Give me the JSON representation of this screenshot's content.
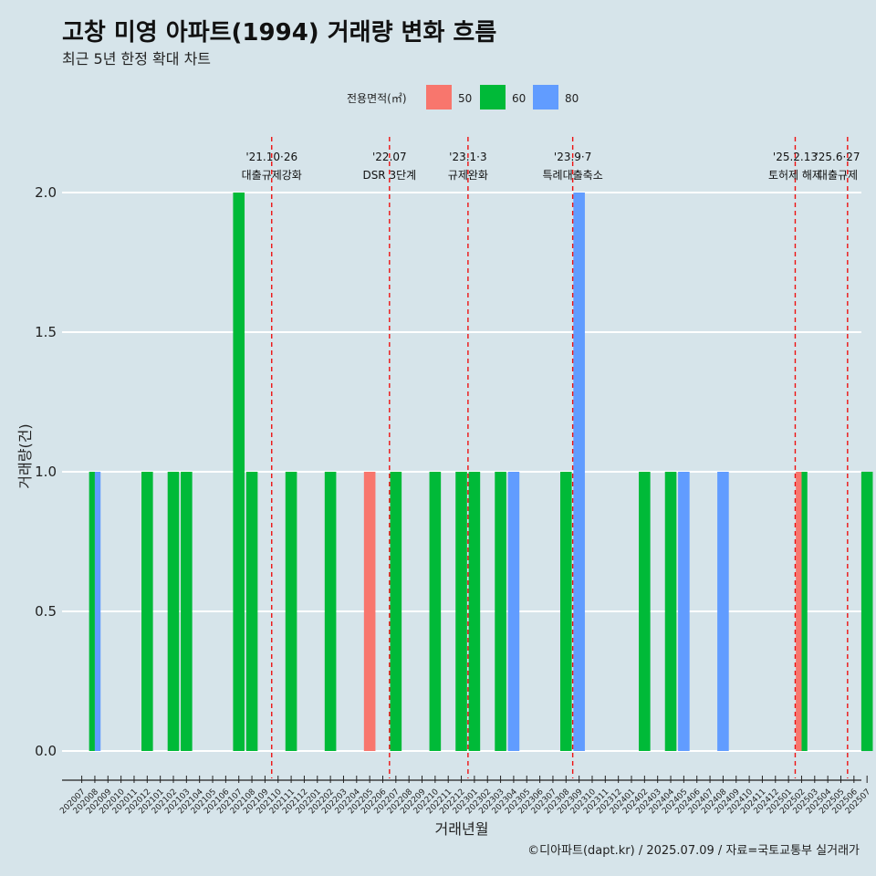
{
  "chart_data": {
    "type": "bar",
    "title": "고창 미영 아파트(1994) 거래량 변화 흐름",
    "subtitle": "최근 5년 한정 확대 차트",
    "xlabel": "거래년월",
    "ylabel": "거래량(건)",
    "ylim": [
      0,
      2
    ],
    "yticks": [
      "0.0",
      "0.5",
      "1.0",
      "1.5",
      "2.0"
    ],
    "caption": "©디아파트(dapt.kr) / 2025.07.09 / 자료=국토교통부 실거래가",
    "legend": {
      "title": "전용면적(㎡)",
      "placement": "top",
      "entries": [
        {
          "name": "50",
          "color": "#f8766d"
        },
        {
          "name": "60",
          "color": "#00ba38"
        },
        {
          "name": "80",
          "color": "#619cff"
        }
      ]
    },
    "grid": true,
    "categories": [
      "202007",
      "202008",
      "202009",
      "202010",
      "202011",
      "202012",
      "202101",
      "202102",
      "202103",
      "202104",
      "202105",
      "202106",
      "202107",
      "202108",
      "202109",
      "202110",
      "202111",
      "202112",
      "202201",
      "202202",
      "202203",
      "202204",
      "202205",
      "202206",
      "202207",
      "202208",
      "202209",
      "202210",
      "202211",
      "202212",
      "202301",
      "202302",
      "202303",
      "202304",
      "202305",
      "202306",
      "202307",
      "202308",
      "202309",
      "202310",
      "202311",
      "202312",
      "202401",
      "202402",
      "202403",
      "202404",
      "202405",
      "202406",
      "202407",
      "202408",
      "202409",
      "202410",
      "202411",
      "202412",
      "202501",
      "202502",
      "202503",
      "202504",
      "202505",
      "202506",
      "202507"
    ],
    "bars": [
      {
        "month": "202008",
        "area": "60",
        "value": 1
      },
      {
        "month": "202008",
        "area": "80",
        "value": 1
      },
      {
        "month": "202012",
        "area": "60",
        "value": 1
      },
      {
        "month": "202102",
        "area": "60",
        "value": 1
      },
      {
        "month": "202103",
        "area": "60",
        "value": 1
      },
      {
        "month": "202107",
        "area": "60",
        "value": 2
      },
      {
        "month": "202108",
        "area": "60",
        "value": 1
      },
      {
        "month": "202111",
        "area": "60",
        "value": 1
      },
      {
        "month": "202202",
        "area": "60",
        "value": 1
      },
      {
        "month": "202205",
        "area": "50",
        "value": 1
      },
      {
        "month": "202207",
        "area": "60",
        "value": 1
      },
      {
        "month": "202210",
        "area": "60",
        "value": 1
      },
      {
        "month": "202212",
        "area": "60",
        "value": 1
      },
      {
        "month": "202301",
        "area": "60",
        "value": 1
      },
      {
        "month": "202303",
        "area": "60",
        "value": 1
      },
      {
        "month": "202304",
        "area": "80",
        "value": 1
      },
      {
        "month": "202308",
        "area": "60",
        "value": 1
      },
      {
        "month": "202309",
        "area": "80",
        "value": 2
      },
      {
        "month": "202402",
        "area": "60",
        "value": 1
      },
      {
        "month": "202404",
        "area": "60",
        "value": 1
      },
      {
        "month": "202405",
        "area": "80",
        "value": 1
      },
      {
        "month": "202408",
        "area": "80",
        "value": 1
      },
      {
        "month": "202502",
        "area": "50",
        "value": 1
      },
      {
        "month": "202502",
        "area": "60",
        "value": 1
      },
      {
        "month": "202507",
        "area": "60",
        "value": 1
      }
    ],
    "annotations": [
      {
        "month": "202110",
        "date": "'21.10·26",
        "label": "대출규제강화"
      },
      {
        "month": "202207",
        "date": "'22.07",
        "label": "DSR 3단계"
      },
      {
        "month": "202301",
        "date": "'23.1·3",
        "label": "규제완화"
      },
      {
        "month": "202309",
        "date": "'23.9·7",
        "label": "특례대출축소"
      },
      {
        "month": "202502",
        "date": "'25.2.13",
        "label": "토허제 해제"
      },
      {
        "month": "202506",
        "date": "'25.6·27",
        "label": "대출규제"
      }
    ]
  }
}
